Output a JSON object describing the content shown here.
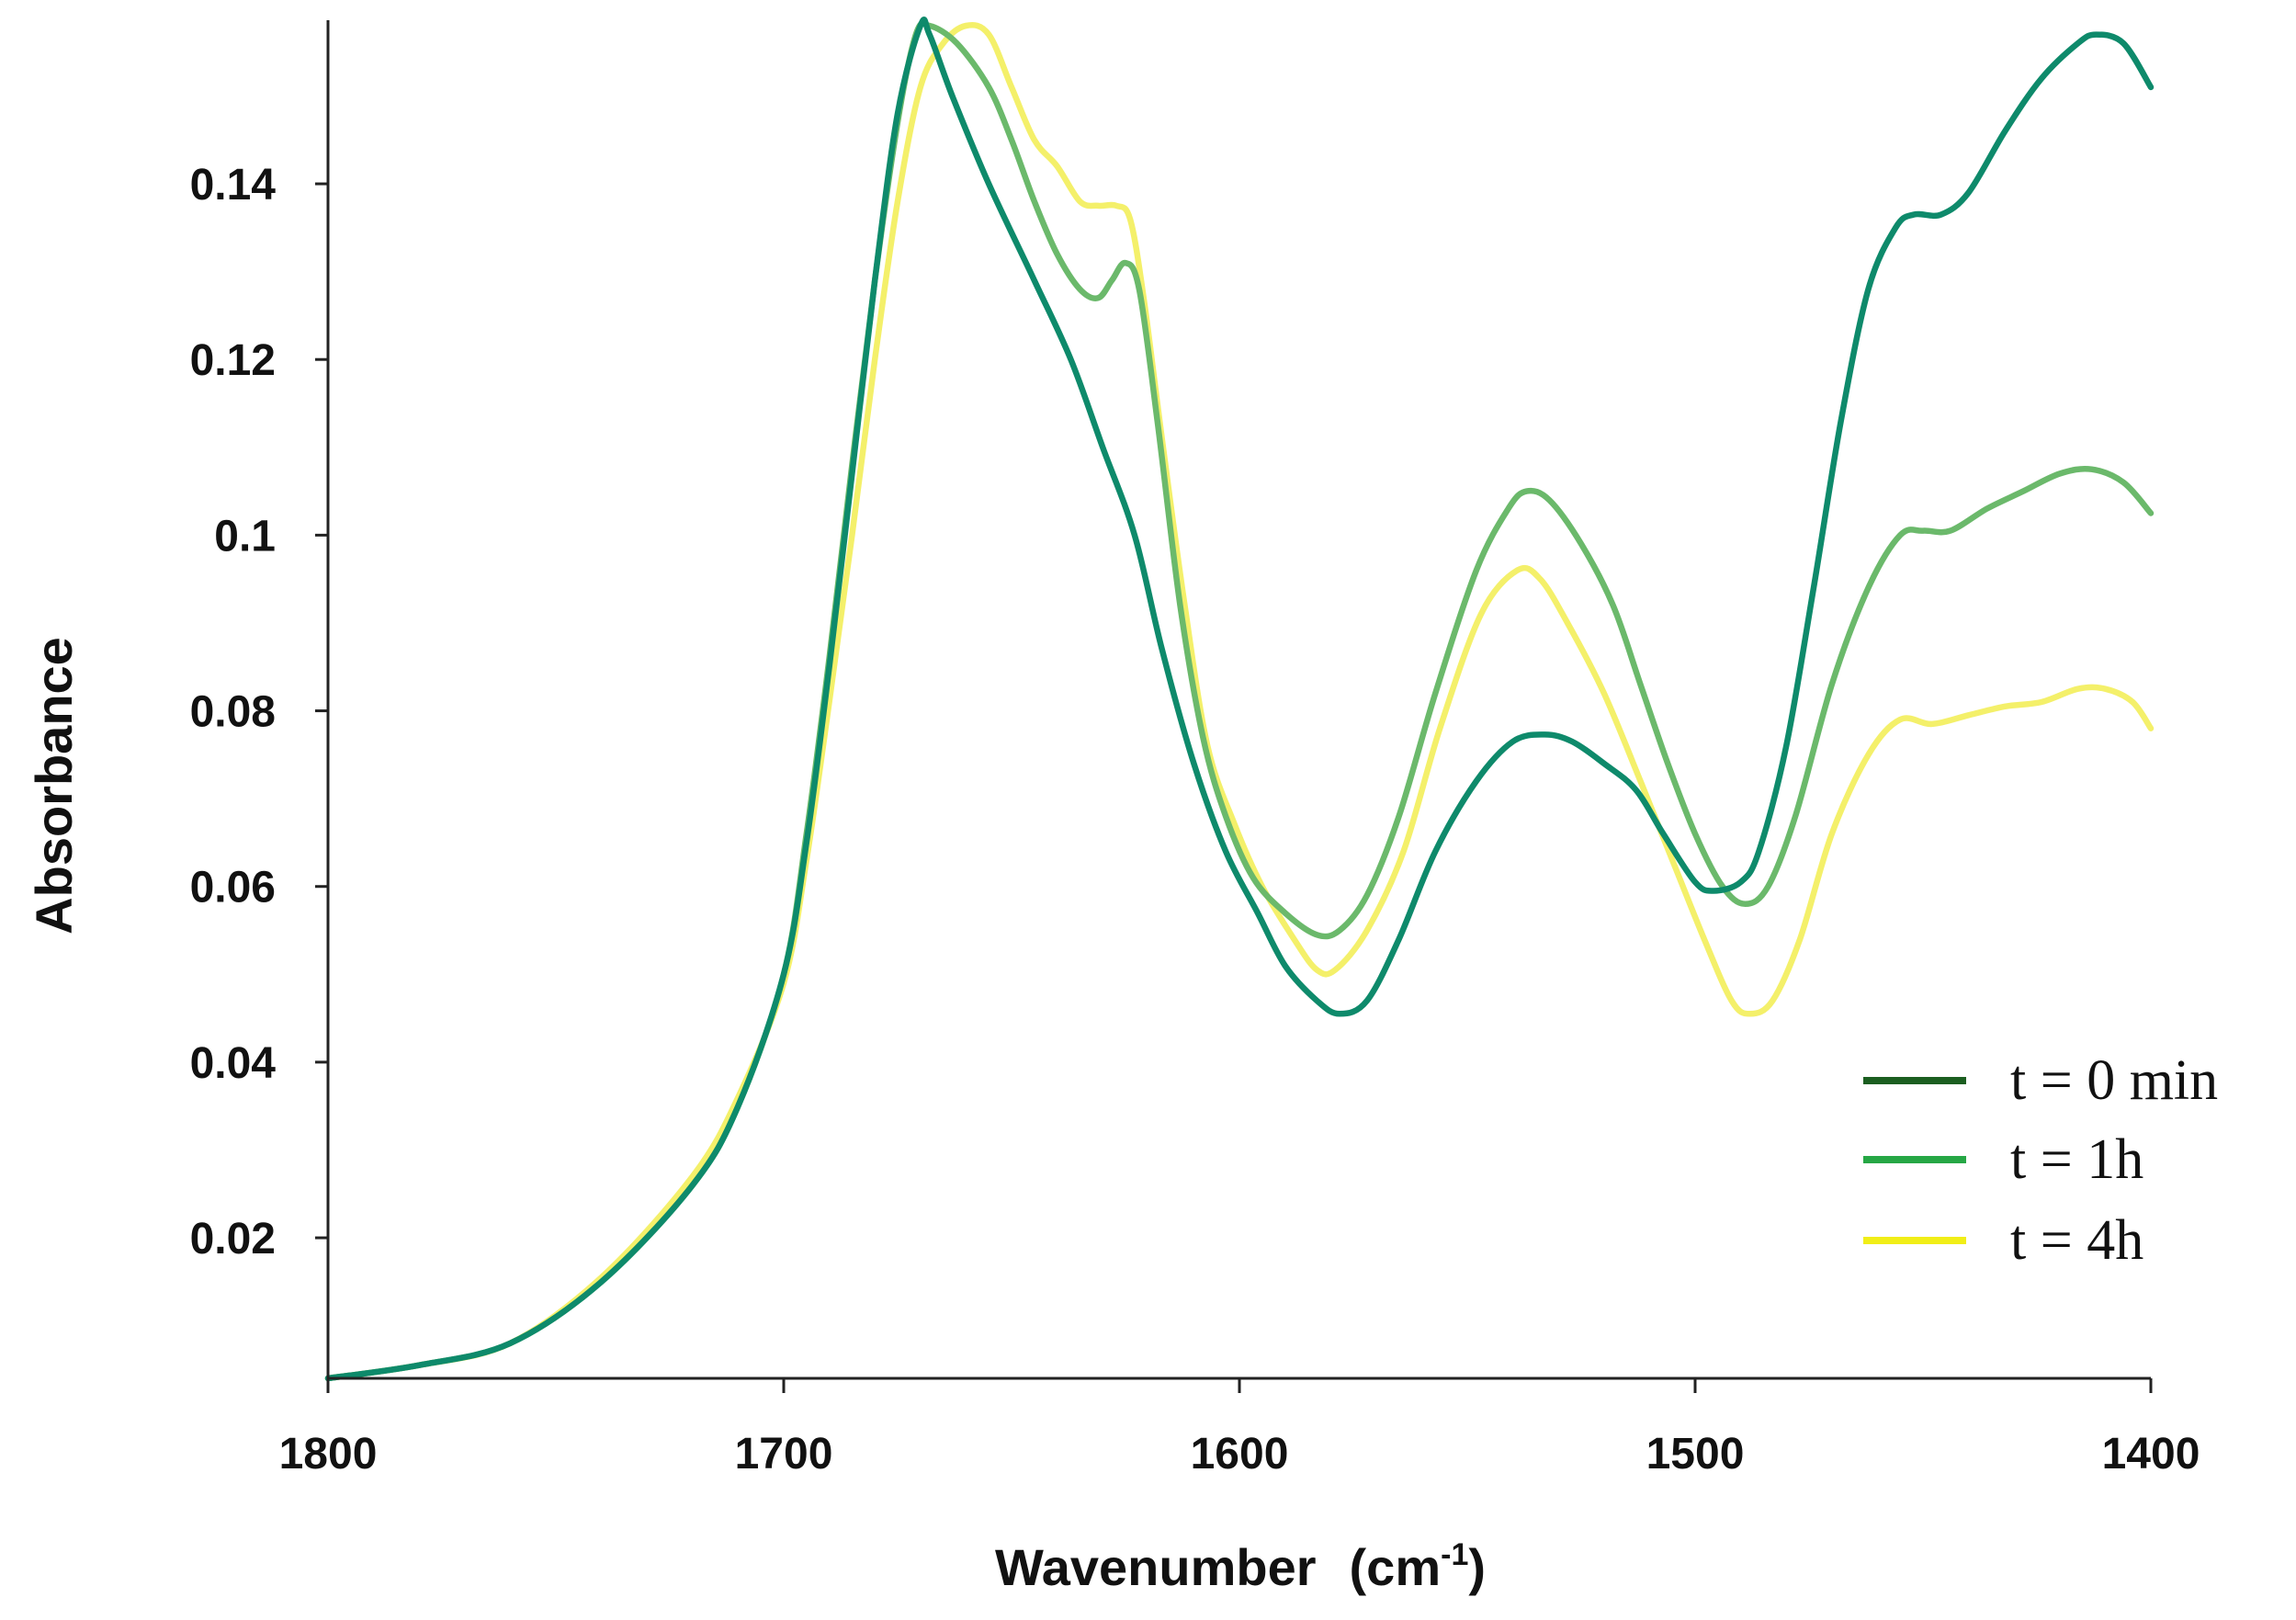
{
  "chart_data": {
    "type": "line",
    "title": "",
    "xlabel": "Wavenumber (cm-1)",
    "xlabel_main": "Wavenumber",
    "xlabel_unit_base": "(cm",
    "xlabel_unit_sup": "-1",
    "xlabel_unit_close": ")",
    "ylabel": "Absorbance",
    "xlim": [
      1800,
      1400
    ],
    "ylim": [
      0.004,
      0.158
    ],
    "x_ticks": [
      1800,
      1700,
      1600,
      1500,
      1400
    ],
    "x_tick_labels": [
      "1800",
      "1700",
      "1600",
      "1500",
      "1400"
    ],
    "y_ticks": [
      0.02,
      0.04,
      0.06,
      0.08,
      0.1,
      0.12,
      0.14
    ],
    "y_tick_labels": [
      "0.02",
      "0.04",
      "0.06",
      "0.08",
      "0.1",
      "0.12",
      "0.14"
    ],
    "grid": false,
    "legend_position": "bottom-right",
    "series": [
      {
        "name": "t = 0 min",
        "line_color": "#0e8a6b",
        "legend_color": "#1b5e20",
        "points": [
          [
            1800,
            0.004
          ],
          [
            1780,
            0.0055
          ],
          [
            1760,
            0.008
          ],
          [
            1740,
            0.015
          ],
          [
            1720,
            0.026
          ],
          [
            1710,
            0.035
          ],
          [
            1700,
            0.05
          ],
          [
            1695,
            0.065
          ],
          [
            1690,
            0.085
          ],
          [
            1685,
            0.107
          ],
          [
            1680,
            0.129
          ],
          [
            1675,
            0.148
          ],
          [
            1670,
            0.158
          ],
          [
            1668,
            0.157
          ],
          [
            1663,
            0.15
          ],
          [
            1655,
            0.14
          ],
          [
            1645,
            0.129
          ],
          [
            1637,
            0.12
          ],
          [
            1630,
            0.11
          ],
          [
            1623,
            0.1
          ],
          [
            1617,
            0.087
          ],
          [
            1610,
            0.074
          ],
          [
            1603,
            0.064
          ],
          [
            1596,
            0.057
          ],
          [
            1590,
            0.051
          ],
          [
            1583,
            0.047
          ],
          [
            1578,
            0.0455
          ],
          [
            1572,
            0.047
          ],
          [
            1565,
            0.054
          ],
          [
            1557,
            0.064
          ],
          [
            1548,
            0.072
          ],
          [
            1540,
            0.0765
          ],
          [
            1533,
            0.0773
          ],
          [
            1527,
            0.0765
          ],
          [
            1520,
            0.074
          ],
          [
            1513,
            0.071
          ],
          [
            1507,
            0.066
          ],
          [
            1500,
            0.0605
          ],
          [
            1496,
            0.0595
          ],
          [
            1490,
            0.0605
          ],
          [
            1486,
            0.064
          ],
          [
            1480,
            0.076
          ],
          [
            1474,
            0.094
          ],
          [
            1468,
            0.113
          ],
          [
            1462,
            0.128
          ],
          [
            1456,
            0.135
          ],
          [
            1452,
            0.1365
          ],
          [
            1446,
            0.1365
          ],
          [
            1440,
            0.139
          ],
          [
            1432,
            0.146
          ],
          [
            1424,
            0.152
          ],
          [
            1416,
            0.156
          ],
          [
            1412,
            0.157
          ],
          [
            1406,
            0.156
          ],
          [
            1400,
            0.151
          ]
        ]
      },
      {
        "name": "t = 1h",
        "line_color": "#6bb96b",
        "legend_color": "#26a745",
        "points": [
          [
            1800,
            0.004
          ],
          [
            1780,
            0.0055
          ],
          [
            1760,
            0.008
          ],
          [
            1740,
            0.015
          ],
          [
            1720,
            0.026
          ],
          [
            1710,
            0.035
          ],
          [
            1700,
            0.05
          ],
          [
            1695,
            0.066
          ],
          [
            1690,
            0.086
          ],
          [
            1685,
            0.108
          ],
          [
            1680,
            0.129
          ],
          [
            1675,
            0.147
          ],
          [
            1671,
            0.157
          ],
          [
            1668,
            0.158
          ],
          [
            1662,
            0.156
          ],
          [
            1655,
            0.151
          ],
          [
            1650,
            0.145
          ],
          [
            1645,
            0.138
          ],
          [
            1640,
            0.132
          ],
          [
            1635,
            0.128
          ],
          [
            1631,
            0.127
          ],
          [
            1628,
            0.129
          ],
          [
            1625,
            0.131
          ],
          [
            1622,
            0.128
          ],
          [
            1618,
            0.113
          ],
          [
            1613,
            0.092
          ],
          [
            1608,
            0.077
          ],
          [
            1603,
            0.068
          ],
          [
            1597,
            0.061
          ],
          [
            1590,
            0.057
          ],
          [
            1583,
            0.0545
          ],
          [
            1578,
            0.055
          ],
          [
            1572,
            0.059
          ],
          [
            1565,
            0.068
          ],
          [
            1557,
            0.082
          ],
          [
            1548,
            0.096
          ],
          [
            1541,
            0.103
          ],
          [
            1537,
            0.105
          ],
          [
            1532,
            0.104
          ],
          [
            1525,
            0.099
          ],
          [
            1518,
            0.092
          ],
          [
            1512,
            0.083
          ],
          [
            1506,
            0.074
          ],
          [
            1500,
            0.066
          ],
          [
            1494,
            0.06
          ],
          [
            1489,
            0.058
          ],
          [
            1484,
            0.06
          ],
          [
            1478,
            0.068
          ],
          [
            1470,
            0.083
          ],
          [
            1462,
            0.094
          ],
          [
            1455,
            0.1
          ],
          [
            1450,
            0.1005
          ],
          [
            1444,
            0.1005
          ],
          [
            1436,
            0.103
          ],
          [
            1428,
            0.105
          ],
          [
            1420,
            0.107
          ],
          [
            1413,
            0.1075
          ],
          [
            1406,
            0.106
          ],
          [
            1400,
            0.1025
          ]
        ]
      },
      {
        "name": "t = 4h",
        "line_color": "#f4f06a",
        "legend_color": "#f1ee17",
        "points": [
          [
            1800,
            0.004
          ],
          [
            1780,
            0.0055
          ],
          [
            1760,
            0.008
          ],
          [
            1740,
            0.0155
          ],
          [
            1720,
            0.027
          ],
          [
            1710,
            0.036
          ],
          [
            1700,
            0.049
          ],
          [
            1695,
            0.063
          ],
          [
            1690,
            0.081
          ],
          [
            1685,
            0.1
          ],
          [
            1680,
            0.12
          ],
          [
            1675,
            0.138
          ],
          [
            1670,
            0.151
          ],
          [
            1665,
            0.156
          ],
          [
            1660,
            0.158
          ],
          [
            1655,
            0.157
          ],
          [
            1650,
            0.151
          ],
          [
            1645,
            0.145
          ],
          [
            1640,
            0.142
          ],
          [
            1635,
            0.138
          ],
          [
            1631,
            0.1375
          ],
          [
            1627,
            0.1375
          ],
          [
            1624,
            0.136
          ],
          [
            1621,
            0.127
          ],
          [
            1617,
            0.111
          ],
          [
            1612,
            0.092
          ],
          [
            1607,
            0.076
          ],
          [
            1601,
            0.067
          ],
          [
            1595,
            0.06
          ],
          [
            1588,
            0.054
          ],
          [
            1583,
            0.0505
          ],
          [
            1579,
            0.0505
          ],
          [
            1572,
            0.055
          ],
          [
            1564,
            0.064
          ],
          [
            1556,
            0.078
          ],
          [
            1547,
            0.091
          ],
          [
            1539,
            0.096
          ],
          [
            1534,
            0.095
          ],
          [
            1528,
            0.09
          ],
          [
            1520,
            0.082
          ],
          [
            1512,
            0.072
          ],
          [
            1505,
            0.063
          ],
          [
            1498,
            0.054
          ],
          [
            1492,
            0.047
          ],
          [
            1488,
            0.0455
          ],
          [
            1483,
            0.047
          ],
          [
            1477,
            0.054
          ],
          [
            1470,
            0.066
          ],
          [
            1462,
            0.075
          ],
          [
            1455,
            0.079
          ],
          [
            1448,
            0.0785
          ],
          [
            1440,
            0.0795
          ],
          [
            1432,
            0.0805
          ],
          [
            1424,
            0.081
          ],
          [
            1416,
            0.0825
          ],
          [
            1410,
            0.0825
          ],
          [
            1404,
            0.081
          ],
          [
            1400,
            0.078
          ]
        ]
      }
    ]
  }
}
